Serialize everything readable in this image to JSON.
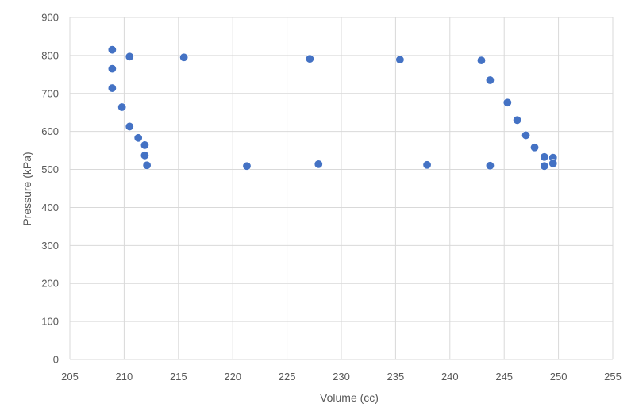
{
  "chart_data": {
    "type": "scatter",
    "title": "",
    "xlabel": "Volume (cc)",
    "ylabel": "Pressure (kPa)",
    "xlim": [
      205,
      255
    ],
    "ylim": [
      0,
      900
    ],
    "x_ticks": [
      205,
      210,
      215,
      220,
      225,
      230,
      235,
      240,
      245,
      250,
      255
    ],
    "y_ticks": [
      0,
      100,
      200,
      300,
      400,
      500,
      600,
      700,
      800,
      900
    ],
    "grid": true,
    "legend": "none",
    "marker_color": "#4472C4",
    "series": [
      {
        "points": [
          [
            208.9,
            815
          ],
          [
            208.9,
            765
          ],
          [
            208.9,
            714
          ],
          [
            209.8,
            664
          ],
          [
            210.5,
            613
          ],
          [
            211.3,
            583
          ],
          [
            211.9,
            564
          ],
          [
            211.9,
            537
          ],
          [
            212.1,
            511
          ],
          [
            210.5,
            797
          ],
          [
            215.5,
            795
          ],
          [
            221.3,
            509
          ],
          [
            227.1,
            791
          ],
          [
            227.9,
            514
          ],
          [
            235.4,
            789
          ],
          [
            237.9,
            512
          ],
          [
            242.9,
            787
          ],
          [
            243.7,
            735
          ],
          [
            243.7,
            510
          ],
          [
            245.3,
            676
          ],
          [
            246.2,
            630
          ],
          [
            247.0,
            590
          ],
          [
            247.8,
            558
          ],
          [
            248.7,
            533
          ],
          [
            248.7,
            509
          ],
          [
            249.5,
            531
          ],
          [
            249.5,
            516
          ]
        ]
      }
    ]
  }
}
